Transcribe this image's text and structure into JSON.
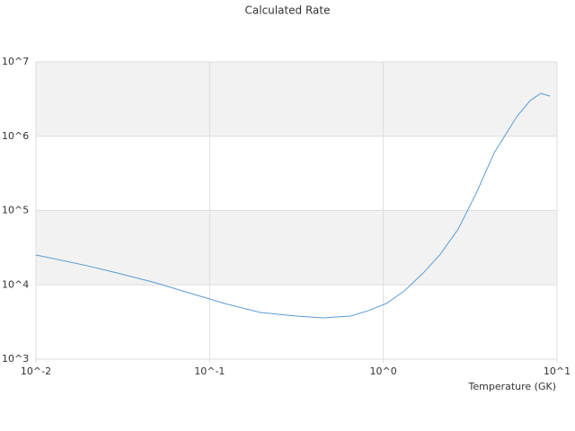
{
  "chart_data": {
    "type": "line",
    "title": "Calculated Rate",
    "x_label": "Temperature (GK)",
    "x": [
      0.01,
      0.0127,
      0.0197,
      0.0292,
      0.0471,
      0.0757,
      0.122,
      0.196,
      0.316,
      0.452,
      0.647,
      0.821,
      1.04,
      1.32,
      1.68,
      2.13,
      2.7,
      3.43,
      4.35,
      5.86,
      7.0,
      8.07,
      9.1
    ],
    "values": [
      25200,
      22500,
      18100,
      14500,
      10900,
      7830,
      5610,
      4250,
      3800,
      3600,
      3800,
      4500,
      5610,
      8280,
      14100,
      25900,
      56500,
      172000,
      601000,
      1830000,
      3020000,
      3780000,
      3470000
    ],
    "color": "#5b9bd5",
    "xlim": [
      0.01,
      10
    ],
    "ylim": [
      1000,
      10000000
    ],
    "x_log": true,
    "y_log": true,
    "xticks": [
      {
        "value": 0.01,
        "label": "10^-2"
      },
      {
        "value": 0.1,
        "label": "10^-1"
      },
      {
        "value": 1,
        "label": "10^0"
      },
      {
        "value": 10,
        "label": "10^1"
      }
    ],
    "yticks": [
      {
        "value": 1000,
        "label": "10^3"
      },
      {
        "value": 10000,
        "label": "10^4"
      },
      {
        "value": 100000,
        "label": "10^5"
      },
      {
        "value": 1000000,
        "label": "10^6"
      },
      {
        "value": 10000000,
        "label": "10^7"
      }
    ],
    "band_color": "#f2f2f2",
    "grid": true
  }
}
